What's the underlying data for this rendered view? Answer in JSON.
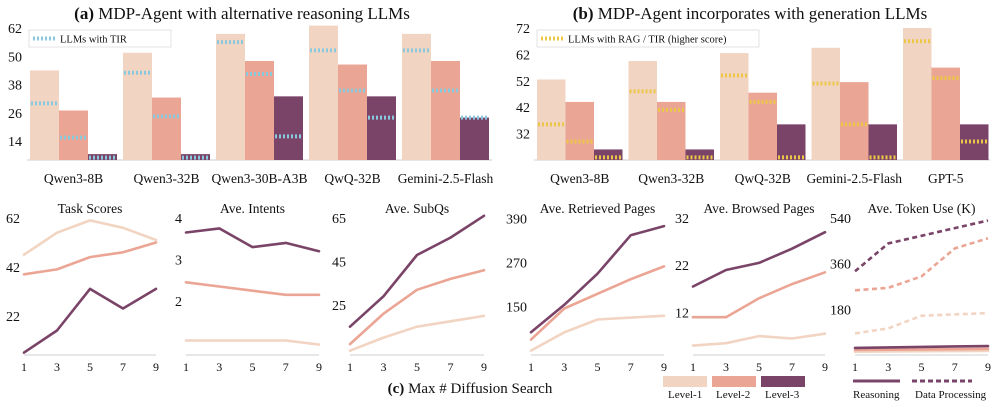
{
  "colors": {
    "level1": "#f2d4c2",
    "level2": "#eba595",
    "level3": "#7a4468",
    "tir_marker": "#89c9dd",
    "rag_marker": "#ecc646"
  },
  "chart_data": [
    {
      "type": "bar",
      "title_label": "(a)",
      "title_text": " MDP-Agent with alternative reasoning LLMs",
      "categories": [
        "Qwen3-8B",
        "Qwen3-32B",
        "Qwen3-30B-A3B",
        "QwQ-32B",
        "Gemini-2.5-Flash"
      ],
      "ylim": [
        6,
        62
      ],
      "yticks": [
        "14",
        "26",
        "38",
        "50",
        "62"
      ],
      "legend": "LLMs with TIR",
      "series": [
        {
          "name": "Level-1",
          "values": [
            44,
            51.5,
            59.5,
            63,
            59.5
          ],
          "tir": [
            30,
            43,
            56,
            52.5,
            52.5
          ]
        },
        {
          "name": "Level-2",
          "values": [
            27,
            32.5,
            48,
            46.5,
            48
          ],
          "tir": [
            15.5,
            24.5,
            42.5,
            35.5,
            35.5
          ]
        },
        {
          "name": "Level-3",
          "values": [
            8.5,
            8.5,
            33,
            33,
            24
          ],
          "tir": [
            7,
            7,
            16,
            24,
            24
          ]
        }
      ]
    },
    {
      "type": "bar",
      "title_label": "(b)",
      "title_text": " MDP-Agent incorporates with generation LLMs",
      "categories": [
        "Qwen3-8B",
        "Qwen3-32B",
        "QwQ-32B",
        "Gemini-2.5-Flash",
        "GPT-5"
      ],
      "ylim": [
        22,
        72
      ],
      "yticks": [
        "32",
        "42",
        "52",
        "62",
        "72"
      ],
      "legend": "LLMs with RAG / TIR (higher score)",
      "series": [
        {
          "name": "Level-1",
          "values": [
            52.5,
            59.5,
            62.5,
            64.5,
            72
          ],
          "rag": [
            35.5,
            48,
            54,
            51,
            67
          ]
        },
        {
          "name": "Level-2",
          "values": [
            44,
            44,
            47.5,
            51.5,
            57
          ],
          "rag": [
            29,
            41,
            44,
            35.5,
            53
          ]
        },
        {
          "name": "Level-3",
          "values": [
            26,
            26,
            35.5,
            35.5,
            35.5
          ],
          "rag": [
            23,
            23,
            23,
            23,
            29
          ]
        }
      ]
    },
    {
      "type": "line",
      "title": "Task Scores",
      "x": [
        1,
        3,
        5,
        7,
        9
      ],
      "ylim": [
        6,
        62
      ],
      "yticks": [
        "22",
        "42",
        "62"
      ],
      "series": [
        {
          "name": "Level-1",
          "values": [
            47,
            56,
            61,
            58,
            53
          ]
        },
        {
          "name": "Level-2",
          "values": [
            39,
            41,
            46,
            48,
            52
          ]
        },
        {
          "name": "Level-3",
          "values": [
            7,
            16,
            33,
            25,
            33
          ]
        }
      ]
    },
    {
      "type": "line",
      "title": "Ave. Intents",
      "x": [
        1,
        3,
        5,
        7,
        9
      ],
      "ylim": [
        0.7,
        4
      ],
      "yticks": [
        "2",
        "3",
        "4"
      ],
      "series": [
        {
          "name": "Level-1",
          "values": [
            1.05,
            1.05,
            1.05,
            1.05,
            0.95
          ]
        },
        {
          "name": "Level-2",
          "values": [
            2.45,
            2.35,
            2.25,
            2.15,
            2.15
          ]
        },
        {
          "name": "Level-3",
          "values": [
            3.65,
            3.75,
            3.3,
            3.4,
            3.2
          ]
        }
      ]
    },
    {
      "type": "line",
      "title": "Ave. SubQs",
      "x": [
        1,
        3,
        5,
        7,
        9
      ],
      "ylim": [
        2,
        65
      ],
      "yticks": [
        "25",
        "45",
        "65"
      ],
      "series": [
        {
          "name": "Level-1",
          "values": [
            4,
            10,
            15,
            17.5,
            20
          ]
        },
        {
          "name": "Level-2",
          "values": [
            7,
            21,
            32,
            37,
            41
          ]
        },
        {
          "name": "Level-3",
          "values": [
            15,
            29,
            48,
            56,
            66
          ]
        }
      ]
    },
    {
      "type": "line",
      "title": "Ave. Retrieved Pages",
      "x": [
        1,
        3,
        5,
        7,
        9
      ],
      "ylim": [
        18,
        392
      ],
      "yticks": [
        "150",
        "270",
        "390"
      ],
      "series": [
        {
          "name": "Level-1",
          "values": [
            30,
            80,
            115,
            120,
            125
          ]
        },
        {
          "name": "Level-2",
          "values": [
            60,
            145,
            185,
            225,
            260
          ]
        },
        {
          "name": "Level-3",
          "values": [
            80,
            155,
            240,
            345,
            370
          ]
        }
      ]
    },
    {
      "type": "line",
      "title": "Ave. Browsed Pages",
      "x": [
        1,
        3,
        5,
        7,
        9
      ],
      "ylim": [
        3,
        32
      ],
      "yticks": [
        "12",
        "22",
        "32"
      ],
      "series": [
        {
          "name": "Level-1",
          "values": [
            5,
            5.5,
            7,
            6.5,
            7.5
          ]
        },
        {
          "name": "Level-2",
          "values": [
            11,
            11,
            15,
            18,
            20.5
          ]
        },
        {
          "name": "Level-3",
          "values": [
            17.5,
            21,
            22.5,
            25.5,
            29
          ]
        }
      ]
    },
    {
      "type": "line",
      "title": "Ave. Token Use (K)",
      "x": [
        1,
        3,
        5,
        7,
        9
      ],
      "ylim": [
        0,
        540
      ],
      "yticks": [
        "180",
        "360",
        "540"
      ],
      "series": [
        {
          "name": "Level-1",
          "style": "solid",
          "values": [
            13,
            14,
            15,
            15.5,
            16
          ]
        },
        {
          "name": "Level-2",
          "style": "solid",
          "values": [
            20,
            21,
            22,
            23,
            24
          ]
        },
        {
          "name": "Level-3",
          "style": "solid",
          "values": [
            28,
            30,
            32,
            34,
            35
          ]
        },
        {
          "name": "Level-1",
          "style": "dashed",
          "values": [
            85,
            105,
            155,
            160,
            165
          ]
        },
        {
          "name": "Level-2",
          "style": "dashed",
          "values": [
            255,
            265,
            310,
            420,
            460
          ]
        },
        {
          "name": "Level-3",
          "style": "dashed",
          "values": [
            330,
            440,
            470,
            500,
            530
          ]
        }
      ]
    }
  ],
  "caption_label": "(c)",
  "caption_text": " Max # Diffusion Search",
  "legend_levels": [
    "Level-1",
    "Level-2",
    "Level-3"
  ],
  "legend_styles": [
    "Reasoning",
    "Data Processing"
  ]
}
